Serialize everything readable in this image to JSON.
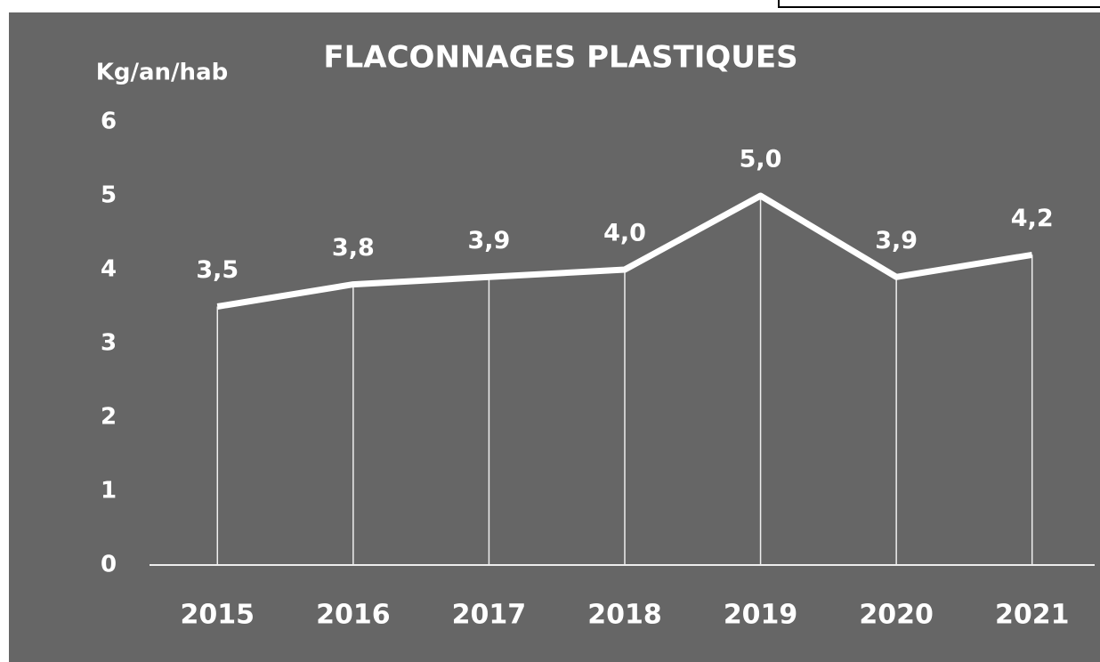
{
  "chart_data": {
    "type": "line",
    "title": "FLACONNAGES PLASTIQUES",
    "y_label": "Kg/an/hab",
    "categories": [
      "2015",
      "2016",
      "2017",
      "2018",
      "2019",
      "2020",
      "2021"
    ],
    "series": [
      {
        "name": "Flaconnages plastiques",
        "color": "#ffffff",
        "values": [
          3.5,
          3.8,
          3.9,
          4.0,
          5.0,
          3.9,
          4.2
        ],
        "value_labels": [
          "3,5",
          "3,8",
          "3,9",
          "4,0",
          "5,0",
          "3,9",
          "4,2"
        ]
      }
    ],
    "ylim": [
      0,
      6
    ],
    "yticks": [
      0,
      1,
      2,
      3,
      4,
      5,
      6
    ],
    "grid": false,
    "drop_lines": true
  }
}
